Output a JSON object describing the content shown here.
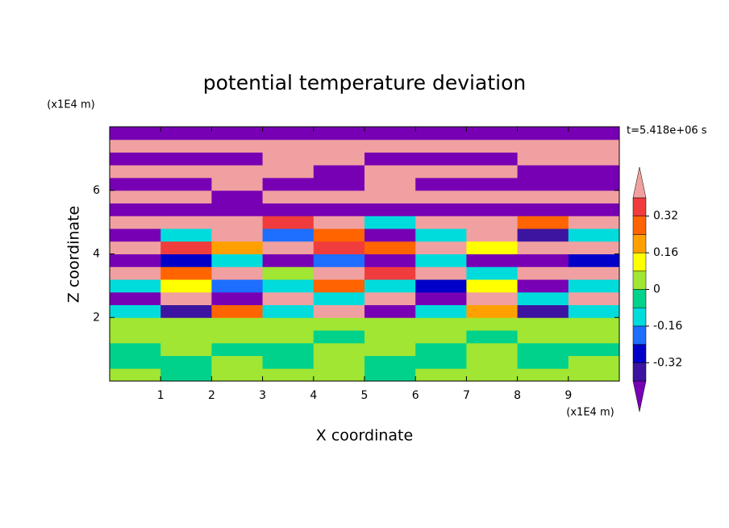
{
  "chart_data": {
    "type": "contour",
    "title": "potential temperature deviation",
    "xlabel": "X coordinate",
    "ylabel": "Z coordinate",
    "xunit": "(x1E4 m)",
    "yunit": "(x1E4 m)",
    "annotation": "t=5.418e+06 s",
    "xlim": [
      0,
      10
    ],
    "ylim": [
      0,
      8
    ],
    "xticks": [
      1,
      2,
      3,
      4,
      5,
      6,
      7,
      8,
      9
    ],
    "yticks": [
      2,
      4,
      6
    ],
    "x": [
      0.5,
      1.5,
      2.5,
      3.5,
      4.5,
      5.5,
      6.5,
      7.5,
      8.5,
      9.5
    ],
    "z": [
      0.2,
      0.6,
      1.0,
      1.4,
      1.8,
      2.2,
      2.6,
      3.0,
      3.4,
      3.8,
      4.2,
      4.6,
      5.0,
      5.4,
      5.8,
      6.2,
      6.6,
      7.0,
      7.4,
      7.8
    ],
    "values": [
      [
        0.03,
        -0.03,
        0.03,
        0.03,
        0.03,
        -0.03,
        0.03,
        0.03,
        0.03,
        0.03
      ],
      [
        -0.03,
        -0.03,
        0.03,
        -0.03,
        0.03,
        -0.03,
        -0.03,
        0.03,
        -0.03,
        0.03
      ],
      [
        -0.03,
        0.03,
        -0.03,
        -0.03,
        0.03,
        0.03,
        -0.03,
        0.03,
        -0.03,
        -0.03
      ],
      [
        0.03,
        0.03,
        0.03,
        0.03,
        -0.03,
        0.03,
        0.03,
        -0.03,
        0.03,
        0.03
      ],
      [
        0.03,
        0.03,
        0.03,
        0.03,
        0.03,
        0.03,
        0.03,
        0.03,
        0.03,
        0.03
      ],
      [
        -0.12,
        -0.35,
        0.3,
        -0.12,
        0.5,
        -0.45,
        -0.12,
        0.2,
        -0.35,
        -0.12
      ],
      [
        -0.5,
        0.5,
        -0.45,
        0.45,
        -0.12,
        0.5,
        -0.5,
        0.45,
        -0.12,
        0.5
      ],
      [
        -0.12,
        0.12,
        -0.2,
        -0.12,
        0.3,
        -0.12,
        -0.28,
        0.12,
        -0.5,
        -0.12
      ],
      [
        0.45,
        0.28,
        0.5,
        0.05,
        0.45,
        0.36,
        0.5,
        -0.12,
        0.45,
        0.5
      ],
      [
        -0.5,
        -0.28,
        -0.12,
        -0.5,
        -0.2,
        -0.5,
        -0.12,
        -0.45,
        -0.5,
        -0.28
      ],
      [
        0.45,
        0.36,
        0.2,
        0.5,
        0.36,
        0.28,
        0.45,
        0.12,
        0.5,
        0.45
      ],
      [
        -0.5,
        -0.12,
        0.45,
        -0.2,
        0.28,
        -0.5,
        -0.12,
        0.5,
        -0.35,
        -0.12
      ],
      [
        0.5,
        0.45,
        0.5,
        0.36,
        0.5,
        -0.12,
        0.45,
        0.5,
        0.28,
        0.5
      ],
      [
        -0.5,
        -0.5,
        -0.5,
        -0.5,
        -0.45,
        -0.5,
        -0.5,
        -0.5,
        -0.45,
        -0.5
      ],
      [
        0.5,
        0.5,
        -0.5,
        0.5,
        0.5,
        0.5,
        0.5,
        0.45,
        0.5,
        0.5
      ],
      [
        -0.5,
        -0.5,
        0.5,
        -0.5,
        -0.5,
        0.5,
        -0.5,
        -0.5,
        -0.5,
        -0.5
      ],
      [
        0.5,
        0.5,
        0.5,
        0.5,
        -0.5,
        0.5,
        0.5,
        0.5,
        -0.5,
        -0.5
      ],
      [
        -0.5,
        -0.5,
        -0.5,
        0.5,
        0.5,
        -0.5,
        -0.5,
        -0.5,
        0.5,
        0.5
      ],
      [
        0.5,
        0.5,
        0.5,
        0.5,
        0.5,
        0.5,
        0.5,
        0.5,
        0.5,
        0.5
      ],
      [
        -0.5,
        -0.5,
        -0.5,
        -0.5,
        -0.5,
        -0.5,
        -0.5,
        -0.5,
        -0.5,
        -0.5
      ]
    ],
    "colorbar": {
      "levels": [
        -0.4,
        -0.32,
        -0.24,
        -0.16,
        -0.08,
        0,
        0.08,
        0.16,
        0.24,
        0.32,
        0.4
      ],
      "colors": [
        "#7800b4",
        "#3c14a0",
        "#0000c8",
        "#1e6eff",
        "#00dcdc",
        "#00d28c",
        "#a0e632",
        "#ffff00",
        "#ffa000",
        "#ff6400",
        "#f03c3c",
        "#f0a0a0"
      ],
      "ticks": [
        -0.32,
        -0.16,
        0,
        0.16,
        0.32
      ]
    }
  }
}
